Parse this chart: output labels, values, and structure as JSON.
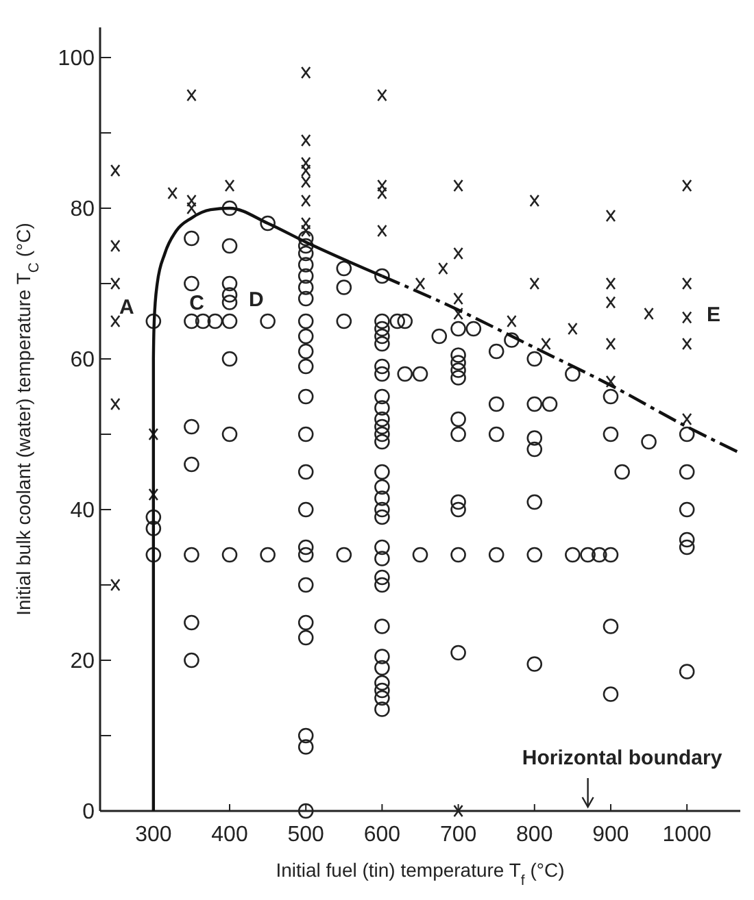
{
  "chart_data": {
    "type": "scatter",
    "xlabel": "Initial fuel (tin) temperature T$_{f}$ (°C)",
    "ylabel": "Initial bulk coolant (water) temperature T$_{C}$ (°C)",
    "xlim": [
      230,
      1070
    ],
    "ylim": [
      0,
      104
    ],
    "xticks": [
      300,
      400,
      500,
      600,
      700,
      800,
      900,
      1000
    ],
    "yticks": [
      0,
      {
        "value": 10,
        "label": null
      },
      20,
      {
        "value": 30,
        "label": null
      },
      40,
      {
        "value": 50,
        "label": null
      },
      60,
      {
        "value": 70,
        "label": null
      },
      80,
      {
        "value": 90,
        "label": null
      },
      100
    ],
    "series": [
      {
        "marker": "circle",
        "color": "#222222",
        "x": [
          300,
          300,
          300,
          300,
          350,
          350,
          350,
          350,
          350,
          350,
          350,
          350,
          365,
          381,
          400,
          400,
          400,
          400,
          400,
          400,
          400,
          400,
          400,
          450,
          450,
          450,
          500,
          500,
          500,
          500,
          500,
          500,
          500,
          500,
          500,
          500,
          500,
          500,
          500,
          500,
          500,
          500,
          500,
          500,
          500,
          500,
          500,
          500,
          500,
          550,
          550,
          550,
          550,
          600,
          600,
          600,
          600,
          600,
          600,
          600,
          600,
          600,
          600,
          600,
          600,
          600,
          600,
          600,
          600,
          600,
          600,
          600,
          600,
          600,
          600,
          600,
          600,
          600,
          600,
          600,
          600,
          600,
          620,
          630,
          675,
          630,
          650,
          650,
          700,
          700,
          700,
          700,
          700,
          700,
          700,
          700,
          700,
          700,
          700,
          720,
          750,
          750,
          750,
          750,
          770,
          800,
          800,
          800,
          800,
          800,
          800,
          800,
          820,
          850,
          850,
          870,
          885,
          900,
          900,
          900,
          900,
          900,
          915,
          950,
          1000,
          1000,
          1000,
          1000,
          1000,
          1000
        ],
        "values": [
          65,
          39,
          37.5,
          34,
          76,
          70,
          65,
          51,
          46,
          34,
          25,
          20,
          65,
          65,
          80,
          75,
          70,
          68.5,
          67.5,
          65,
          60,
          50,
          34,
          78,
          65,
          34,
          76,
          75,
          74,
          72.5,
          71,
          69.5,
          68,
          65,
          63,
          61,
          59,
          55,
          50,
          45,
          40,
          35,
          34,
          30,
          25,
          23,
          10,
          8.5,
          0,
          72,
          69.5,
          65,
          34,
          71,
          65,
          64,
          63,
          62,
          59,
          58,
          55,
          53.5,
          52,
          51,
          50,
          49,
          45,
          43,
          41.5,
          40,
          39,
          35,
          33.5,
          31,
          30,
          24.5,
          20.5,
          19,
          17,
          16,
          15,
          13.5,
          65,
          65,
          63,
          58,
          58,
          34,
          64,
          60.5,
          59.5,
          58.5,
          57.5,
          52,
          50,
          41,
          40,
          34,
          21,
          64,
          61,
          54,
          50,
          34,
          62.5,
          60,
          54,
          49.5,
          48,
          41,
          34,
          19.5,
          54,
          58,
          34,
          34,
          34,
          55,
          50,
          34,
          24.5,
          15.5,
          45,
          49,
          50,
          45,
          40,
          36,
          35,
          18.5
        ]
      },
      {
        "marker": "cross",
        "color": "#222222",
        "x": [
          250,
          250,
          250,
          250,
          250,
          250,
          300,
          300,
          325,
          350,
          350,
          350,
          400,
          500,
          500,
          500,
          500,
          500,
          500,
          500,
          500,
          600,
          600,
          600,
          600,
          650,
          680,
          700,
          700,
          700,
          700,
          700,
          770,
          800,
          800,
          815,
          850,
          900,
          900,
          900,
          900,
          900,
          950,
          1000,
          1000,
          1000,
          1000,
          1000
        ],
        "values": [
          85,
          75,
          70,
          65,
          54,
          30,
          50,
          42,
          82,
          95,
          81,
          80,
          83,
          98,
          89,
          86,
          85,
          83.5,
          81,
          78,
          77,
          95,
          83,
          82,
          77,
          70,
          72,
          83,
          74,
          68,
          66,
          0,
          65,
          81,
          70,
          62,
          64,
          79,
          70,
          67.5,
          62,
          57,
          66,
          83,
          70,
          65.5,
          62,
          52
        ]
      },
      {
        "type": "line",
        "marker": "none",
        "line_style": "solid",
        "color": "#111111",
        "x": [
          300,
          300,
          301,
          305,
          315,
          330,
          350,
          375,
          400,
          450,
          500,
          600
        ],
        "values": [
          0,
          60,
          65,
          70,
          74,
          77,
          78.7,
          79.8,
          80,
          78,
          75.5,
          71
        ]
      },
      {
        "type": "line",
        "marker": "none",
        "line_style": "dashed",
        "color": "#111111",
        "x": [
          600,
          700,
          800,
          900,
          1000,
          1070
        ],
        "values": [
          71,
          66.5,
          61.5,
          56.5,
          51,
          47.5
        ]
      }
    ],
    "annotations": [
      "A",
      "C",
      "D",
      "E",
      "Horizontal boundary"
    ]
  }
}
